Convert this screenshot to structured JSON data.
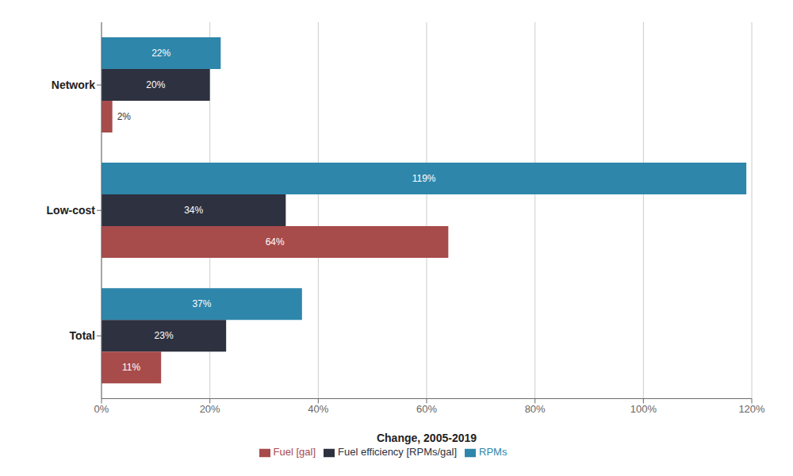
{
  "chart_data": {
    "type": "bar",
    "orientation": "horizontal",
    "categories": [
      "Total",
      "Low-cost",
      "Network"
    ],
    "series": [
      {
        "name": "RPMs",
        "color": "#2e86ab",
        "values": [
          37,
          119,
          22
        ],
        "value_labels": [
          "37%",
          "119%",
          "22%"
        ]
      },
      {
        "name": "Fuel efficiency [RPMs/gal]",
        "color": "#2d3140",
        "values": [
          23,
          34,
          20
        ],
        "value_labels": [
          "23%",
          "34%",
          "20%"
        ]
      },
      {
        "name": "Fuel [gal]",
        "color": "#a84b4b",
        "values": [
          11,
          64,
          2
        ],
        "value_labels": [
          "11%",
          "64%",
          "2%"
        ]
      }
    ],
    "xlabel": "Change, 2005-2019",
    "xlim": [
      0,
      120
    ],
    "xticks": [
      {
        "value": 0,
        "label": "0%"
      },
      {
        "value": 20,
        "label": "20%"
      },
      {
        "value": 40,
        "label": "40%"
      },
      {
        "value": 60,
        "label": "60%"
      },
      {
        "value": 80,
        "label": "80%"
      },
      {
        "value": 100,
        "label": "100%"
      },
      {
        "value": 120,
        "label": "120%"
      }
    ],
    "grid": true,
    "legend": "bottom",
    "data_labels": true
  }
}
